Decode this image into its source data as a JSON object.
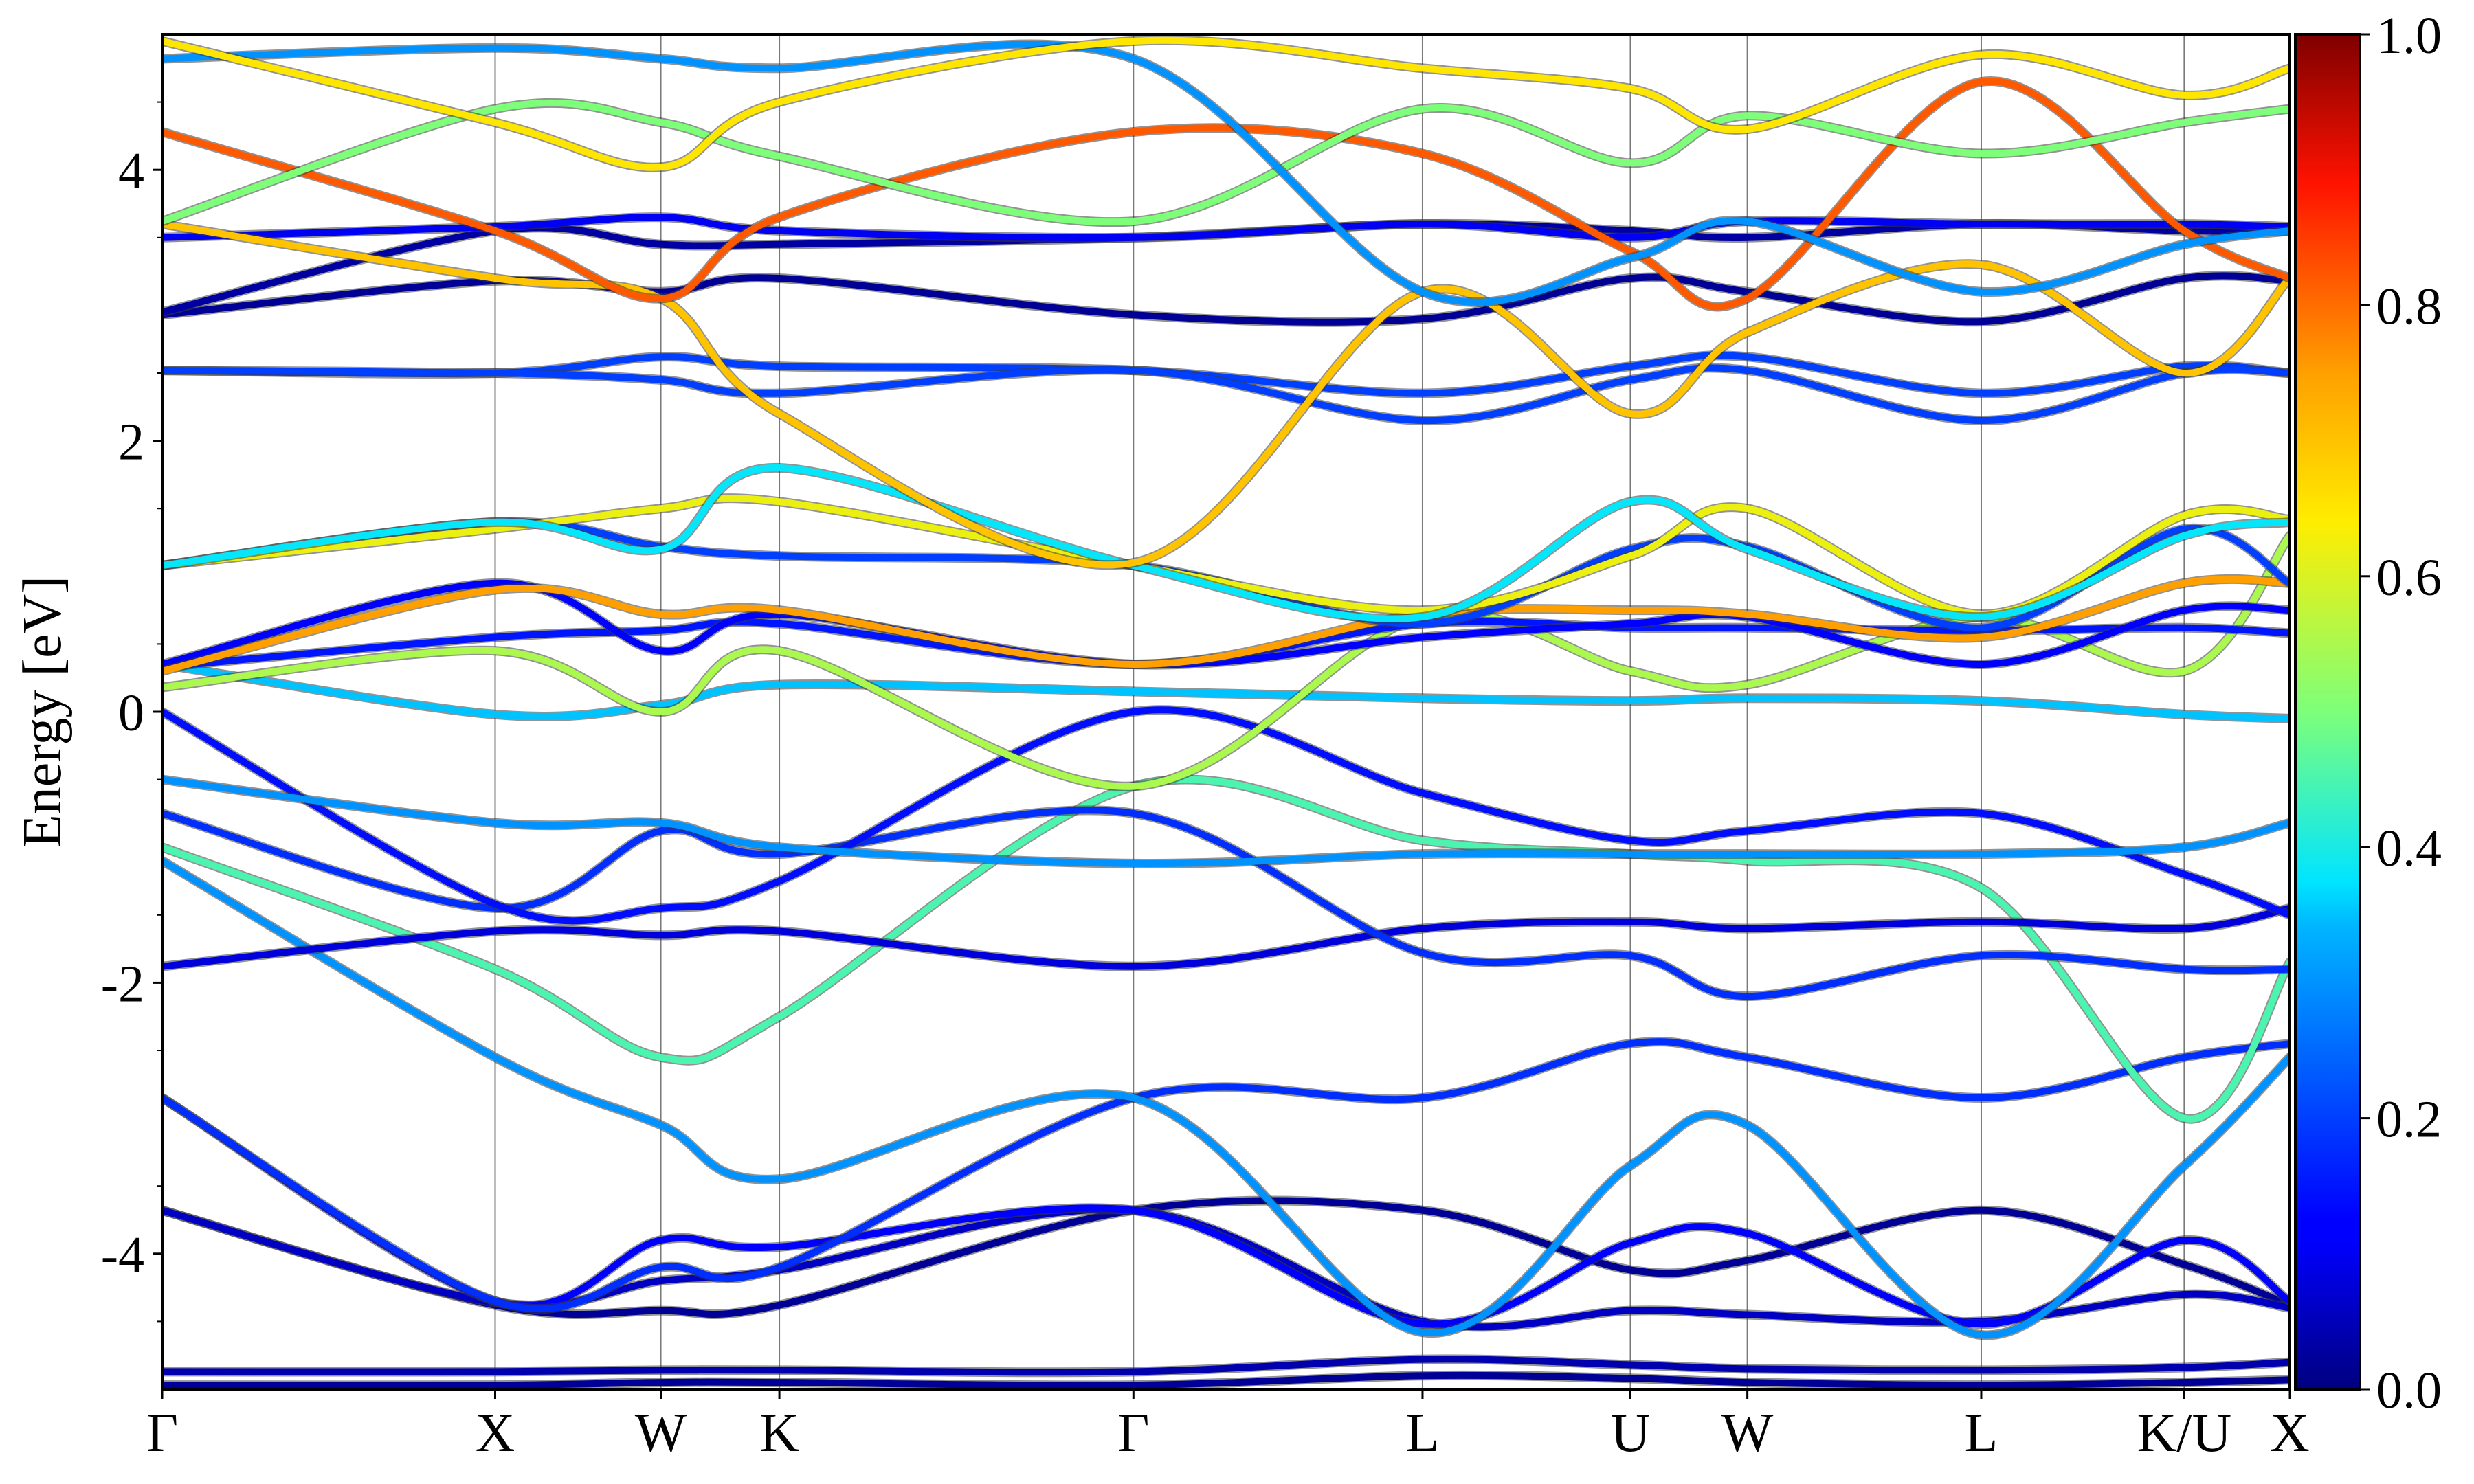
{
  "chart_data": {
    "type": "line",
    "title": "",
    "subtitle": "",
    "xlabel": "",
    "ylabel": "Energy [eV]",
    "ylim": [
      -5,
      5
    ],
    "yticks": [
      4,
      2,
      0,
      -2,
      -4
    ],
    "ytick_labels": [
      "4",
      "2",
      "0",
      "-2",
      "-4"
    ],
    "y_minor_ticks": [
      4.5,
      3.5,
      2.5,
      1.5,
      0.5,
      -0.5,
      -1.5,
      -2.5,
      -3.5,
      -4.5
    ],
    "xlim": [
      0,
      13.1
    ],
    "high_symmetry_points": [
      {
        "label": "Γ",
        "x": 0
      },
      {
        "label": "X",
        "x": 2.05
      },
      {
        "label": "W",
        "x": 3.07
      },
      {
        "label": "K",
        "x": 3.8
      },
      {
        "label": "Γ",
        "x": 5.98
      },
      {
        "label": "L",
        "x": 7.76
      },
      {
        "label": "U",
        "x": 9.04
      },
      {
        "label": "W",
        "x": 9.76
      },
      {
        "label": "L",
        "x": 11.2
      },
      {
        "label": "K/U",
        "x": 12.45
      },
      {
        "label": "X",
        "x": 13.1
      }
    ],
    "colorbar": {
      "colormap": "jet",
      "range": [
        0.0,
        1.0
      ],
      "ticks": [
        0.0,
        0.2,
        0.4,
        0.6,
        0.8,
        1.0
      ],
      "tick_labels": [
        "0.0",
        "0.2",
        "0.4",
        "0.6",
        "0.8",
        "1.0"
      ]
    },
    "grid": false,
    "legend": "none",
    "series": [
      {
        "c": 0.02,
        "x": [
          0,
          2.05,
          3.07,
          3.8,
          5.98,
          7.76,
          9.04,
          9.76,
          11.2,
          12.45,
          13.1
        ],
        "y": [
          -4.97,
          -4.97,
          -4.95,
          -4.95,
          -4.97,
          -4.9,
          -4.92,
          -4.95,
          -4.97,
          -4.95,
          -4.93
        ]
      },
      {
        "c": 0.04,
        "x": [
          0,
          2.05,
          3.07,
          3.8,
          5.98,
          7.76,
          9.04,
          9.76,
          11.2,
          12.45,
          13.1
        ],
        "y": [
          -4.87,
          -4.87,
          -4.86,
          -4.86,
          -4.87,
          -4.78,
          -4.82,
          -4.85,
          -4.86,
          -4.84,
          -4.8
        ]
      },
      {
        "c": 0.02,
        "x": [
          0,
          2.05,
          3.07,
          3.8,
          5.98,
          7.76,
          9.04,
          9.76,
          11.2,
          12.45,
          13.1
        ],
        "y": [
          -3.68,
          -4.38,
          -4.42,
          -4.38,
          -3.68,
          -3.68,
          -4.12,
          -4.05,
          -3.68,
          -4.08,
          -4.38
        ]
      },
      {
        "c": 0.06,
        "x": [
          0,
          2.05,
          3.07,
          3.8,
          5.98,
          7.76,
          9.04,
          9.76,
          11.2,
          12.45,
          13.1
        ],
        "y": [
          -3.68,
          -4.36,
          -4.2,
          -4.12,
          -3.68,
          -4.5,
          -4.42,
          -4.45,
          -4.5,
          -4.3,
          -4.4
        ]
      },
      {
        "c": 0.12,
        "x": [
          0,
          2.05,
          3.07,
          3.8,
          5.98,
          7.76,
          9.04,
          9.76,
          11.2,
          12.45,
          13.1
        ],
        "y": [
          -2.85,
          -4.35,
          -3.9,
          -3.95,
          -3.68,
          -4.52,
          -3.92,
          -3.85,
          -4.52,
          -3.9,
          -4.35
        ]
      },
      {
        "c": 0.18,
        "x": [
          0,
          2.05,
          3.07,
          3.8,
          5.98,
          7.76,
          9.04,
          9.76,
          11.2,
          12.45,
          13.1
        ],
        "y": [
          -2.85,
          -4.35,
          -4.1,
          -4.1,
          -2.85,
          -2.85,
          -2.45,
          -2.55,
          -2.85,
          -2.55,
          -2.45
        ]
      },
      {
        "c": 0.3,
        "x": [
          0,
          2.05,
          3.07,
          3.8,
          5.98,
          7.76,
          9.04,
          9.76,
          11.2,
          12.45,
          13.1
        ],
        "y": [
          -1.1,
          -2.55,
          -3.05,
          -3.45,
          -2.85,
          -4.58,
          -3.35,
          -3.05,
          -4.6,
          -3.35,
          -2.55
        ]
      },
      {
        "c": 0.45,
        "x": [
          0,
          2.05,
          3.07,
          3.8,
          5.98,
          7.76,
          9.04,
          9.76,
          11.2,
          12.45,
          13.1
        ],
        "y": [
          -1.0,
          -1.9,
          -2.55,
          -2.25,
          -0.55,
          -0.95,
          -1.05,
          -1.1,
          -1.3,
          -3.0,
          -1.85
        ]
      },
      {
        "c": 0.08,
        "x": [
          0,
          2.05,
          3.07,
          3.8,
          5.98,
          7.76,
          9.04,
          9.76,
          11.2,
          12.45,
          13.1
        ],
        "y": [
          -1.88,
          -1.62,
          -1.65,
          -1.62,
          -1.88,
          -1.6,
          -1.55,
          -1.6,
          -1.55,
          -1.6,
          -1.45
        ]
      },
      {
        "c": 0.18,
        "x": [
          0,
          2.05,
          3.07,
          3.8,
          5.98,
          7.76,
          9.04,
          9.76,
          11.2,
          12.45,
          13.1
        ],
        "y": [
          -0.75,
          -1.45,
          -0.88,
          -1.05,
          -0.75,
          -1.78,
          -1.8,
          -2.1,
          -1.8,
          -1.9,
          -1.9
        ]
      },
      {
        "c": 0.14,
        "x": [
          0,
          2.05,
          3.07,
          3.8,
          5.98,
          7.76,
          9.04,
          9.76,
          11.2,
          12.45,
          13.1
        ],
        "y": [
          0.0,
          -1.42,
          -1.45,
          -1.25,
          0.0,
          -0.6,
          -0.95,
          -0.88,
          -0.75,
          -1.2,
          -1.5
        ]
      },
      {
        "c": 0.3,
        "x": [
          0,
          2.05,
          3.07,
          3.8,
          5.98,
          7.76,
          9.04,
          9.76,
          11.2,
          12.45,
          13.1
        ],
        "y": [
          -0.5,
          -0.82,
          -0.82,
          -1.0,
          -1.12,
          -1.05,
          -1.05,
          -1.05,
          -1.05,
          -1.0,
          -0.82
        ]
      },
      {
        "c": 0.35,
        "x": [
          0,
          2.05,
          3.07,
          3.8,
          5.98,
          7.76,
          9.04,
          9.76,
          11.2,
          12.45,
          13.1
        ],
        "y": [
          0.35,
          -0.02,
          0.05,
          0.2,
          0.15,
          0.1,
          0.08,
          0.1,
          0.08,
          -0.02,
          -0.05
        ]
      },
      {
        "c": 0.55,
        "x": [
          0,
          2.05,
          3.07,
          3.8,
          5.98,
          7.76,
          9.04,
          9.76,
          11.2,
          12.45,
          13.1
        ],
        "y": [
          0.18,
          0.45,
          0.0,
          0.45,
          -0.55,
          0.7,
          0.3,
          0.2,
          0.7,
          0.3,
          1.3
        ]
      },
      {
        "c": 0.15,
        "x": [
          0,
          2.05,
          3.07,
          3.8,
          5.98,
          7.76,
          9.04,
          9.76,
          11.2,
          12.45,
          13.1
        ],
        "y": [
          0.33,
          0.55,
          0.6,
          0.65,
          0.35,
          0.65,
          0.62,
          0.62,
          0.6,
          0.62,
          0.58
        ]
      },
      {
        "c": 0.12,
        "x": [
          0,
          2.05,
          3.07,
          3.8,
          5.98,
          7.76,
          9.04,
          9.76,
          11.2,
          12.45,
          13.1
        ],
        "y": [
          0.35,
          0.95,
          0.45,
          0.72,
          0.35,
          0.55,
          0.65,
          0.7,
          0.35,
          0.75,
          0.75
        ]
      },
      {
        "c": 0.75,
        "x": [
          0,
          2.05,
          3.07,
          3.8,
          5.98,
          7.76,
          9.04,
          9.76,
          11.2,
          12.45,
          13.1
        ],
        "y": [
          0.3,
          0.9,
          0.72,
          0.75,
          0.35,
          0.72,
          0.75,
          0.72,
          0.55,
          0.95,
          0.95
        ]
      },
      {
        "c": 0.2,
        "x": [
          0,
          2.05,
          3.07,
          3.8,
          5.98,
          7.76,
          9.04,
          9.76,
          11.2,
          12.45,
          13.1
        ],
        "y": [
          1.08,
          1.4,
          1.22,
          1.15,
          1.08,
          0.65,
          1.2,
          1.22,
          0.62,
          1.35,
          0.95
        ]
      },
      {
        "c": 0.62,
        "x": [
          0,
          2.05,
          3.07,
          3.8,
          5.98,
          7.76,
          9.04,
          9.76,
          11.2,
          12.45,
          13.1
        ],
        "y": [
          1.08,
          1.35,
          1.5,
          1.55,
          1.08,
          0.75,
          1.15,
          1.5,
          0.72,
          1.45,
          1.42
        ]
      },
      {
        "c": 0.38,
        "x": [
          0,
          2.05,
          3.07,
          3.8,
          5.98,
          7.76,
          9.04,
          9.76,
          11.2,
          12.45,
          13.1
        ],
        "y": [
          1.08,
          1.4,
          1.2,
          1.8,
          1.08,
          0.7,
          1.55,
          1.2,
          0.7,
          1.3,
          1.4
        ]
      },
      {
        "c": 0.2,
        "x": [
          0,
          2.05,
          3.07,
          3.8,
          5.98,
          7.76,
          9.04,
          9.76,
          11.2,
          12.45,
          13.1
        ],
        "y": [
          2.52,
          2.5,
          2.62,
          2.55,
          2.52,
          2.35,
          2.55,
          2.62,
          2.35,
          2.55,
          2.5
        ]
      },
      {
        "c": 0.2,
        "x": [
          0,
          2.05,
          3.07,
          3.8,
          5.98,
          7.76,
          9.04,
          9.76,
          11.2,
          12.45,
          13.1
        ],
        "y": [
          2.52,
          2.5,
          2.45,
          2.35,
          2.52,
          2.15,
          2.45,
          2.52,
          2.15,
          2.5,
          2.5
        ]
      },
      {
        "c": 0.02,
        "x": [
          0,
          2.05,
          3.07,
          3.8,
          5.98,
          7.76,
          9.04,
          9.76,
          11.2,
          12.45,
          13.1
        ],
        "y": [
          2.93,
          3.18,
          3.1,
          3.2,
          2.93,
          2.9,
          3.2,
          3.1,
          2.88,
          3.2,
          3.18
        ]
      },
      {
        "c": 0.03,
        "x": [
          0,
          2.05,
          3.07,
          3.8,
          5.98,
          7.76,
          9.04,
          9.76,
          11.2,
          12.45,
          13.1
        ],
        "y": [
          2.95,
          3.55,
          3.45,
          3.45,
          3.5,
          3.6,
          3.55,
          3.5,
          3.6,
          3.55,
          3.55
        ]
      },
      {
        "c": 0.1,
        "x": [
          0,
          2.05,
          3.07,
          3.8,
          5.98,
          7.76,
          9.04,
          9.76,
          11.2,
          12.45,
          13.1
        ],
        "y": [
          3.5,
          3.58,
          3.65,
          3.55,
          3.5,
          3.6,
          3.5,
          3.62,
          3.6,
          3.6,
          3.58
        ]
      },
      {
        "c": 0.7,
        "x": [
          0,
          2.05,
          3.07,
          3.8,
          5.98,
          7.76,
          9.04,
          9.76,
          11.2,
          12.45,
          13.1
        ],
        "y": [
          3.6,
          3.2,
          3.05,
          2.2,
          1.1,
          3.1,
          2.2,
          2.8,
          3.3,
          2.5,
          3.2
        ]
      },
      {
        "c": 0.82,
        "x": [
          0,
          2.05,
          3.07,
          3.8,
          5.98,
          7.76,
          9.04,
          9.76,
          11.2,
          12.45,
          13.1
        ],
        "y": [
          4.28,
          3.55,
          3.05,
          3.65,
          4.28,
          4.12,
          3.4,
          3.05,
          4.65,
          3.55,
          3.2
        ]
      },
      {
        "c": 0.5,
        "x": [
          0,
          2.05,
          3.07,
          3.8,
          5.98,
          7.76,
          9.04,
          9.76,
          11.2,
          12.45,
          13.1
        ],
        "y": [
          3.62,
          4.45,
          4.35,
          4.1,
          3.62,
          4.45,
          4.05,
          4.4,
          4.12,
          4.35,
          4.45
        ]
      },
      {
        "c": 0.3,
        "x": [
          0,
          2.05,
          3.07,
          3.8,
          5.98,
          7.76,
          9.04,
          9.76,
          11.2,
          12.45,
          13.1
        ],
        "y": [
          4.82,
          4.9,
          4.82,
          4.75,
          4.82,
          3.1,
          3.35,
          3.62,
          3.1,
          3.45,
          3.55
        ]
      },
      {
        "c": 0.65,
        "x": [
          0,
          2.05,
          3.07,
          3.8,
          5.98,
          7.76,
          9.04,
          9.76,
          11.2,
          12.45,
          13.1
        ],
        "y": [
          4.95,
          4.35,
          4.02,
          4.5,
          4.95,
          4.75,
          4.6,
          4.3,
          4.85,
          4.55,
          4.75
        ]
      }
    ]
  }
}
